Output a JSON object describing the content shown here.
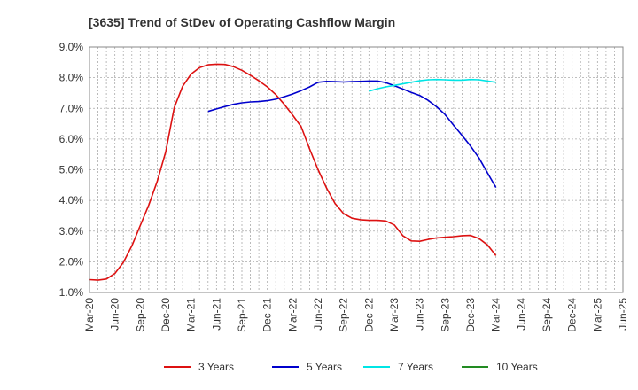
{
  "chart_data": {
    "type": "line",
    "title": "[3635]  Trend of StDev of Operating Cashflow Margin",
    "xlabel": "",
    "ylabel": "",
    "ylim": [
      1.0,
      9.0
    ],
    "y_ticks": [
      "9.0%",
      "8.0%",
      "7.0%",
      "6.0%",
      "5.0%",
      "4.0%",
      "3.0%",
      "2.0%",
      "1.0%"
    ],
    "x_ticks": [
      "Mar-20",
      "Jun-20",
      "Sep-20",
      "Dec-20",
      "Mar-21",
      "Jun-21",
      "Sep-21",
      "Dec-21",
      "Mar-22",
      "Jun-22",
      "Sep-22",
      "Dec-22",
      "Mar-23",
      "Jun-23",
      "Sep-23",
      "Dec-23",
      "Mar-24",
      "Jun-24",
      "Sep-24",
      "Dec-24",
      "Mar-25",
      "Jun-25"
    ],
    "grid": true,
    "legend": "bottom",
    "series": [
      {
        "name": "3 Years",
        "color": "#dd1111",
        "start_index": 0,
        "values": [
          1.42,
          1.4,
          1.44,
          1.62,
          1.98,
          2.52,
          3.18,
          3.85,
          4.62,
          5.58,
          7.02,
          7.72,
          8.12,
          8.33,
          8.42,
          8.44,
          8.43,
          8.36,
          8.24,
          8.08,
          7.9,
          7.7,
          7.45,
          7.13,
          6.78,
          6.4,
          5.68,
          5.0,
          4.4,
          3.9,
          3.57,
          3.42,
          3.37,
          3.35,
          3.35,
          3.33,
          3.2,
          2.85,
          2.68,
          2.67,
          2.73,
          2.78,
          2.8,
          2.82,
          2.85,
          2.86,
          2.76,
          2.55,
          2.2
        ]
      },
      {
        "name": "5 Years",
        "color": "#0000cc",
        "start_index": 14,
        "values": [
          6.9,
          6.98,
          7.06,
          7.13,
          7.18,
          7.21,
          7.22,
          7.25,
          7.3,
          7.38,
          7.47,
          7.58,
          7.7,
          7.85,
          7.88,
          7.87,
          7.86,
          7.87,
          7.88,
          7.89,
          7.89,
          7.84,
          7.74,
          7.63,
          7.52,
          7.42,
          7.26,
          7.05,
          6.8,
          6.45,
          6.12,
          5.77,
          5.38,
          4.9,
          4.42
        ]
      },
      {
        "name": "7 Years",
        "color": "#00e5e5",
        "start_index": 33,
        "values": [
          7.56,
          7.64,
          7.7,
          7.75,
          7.8,
          7.85,
          7.9,
          7.93,
          7.94,
          7.93,
          7.92,
          7.92,
          7.94,
          7.93,
          7.89,
          7.85
        ]
      },
      {
        "name": "10 Years",
        "color": "#228b22",
        "start_index": 0,
        "values": []
      }
    ]
  }
}
